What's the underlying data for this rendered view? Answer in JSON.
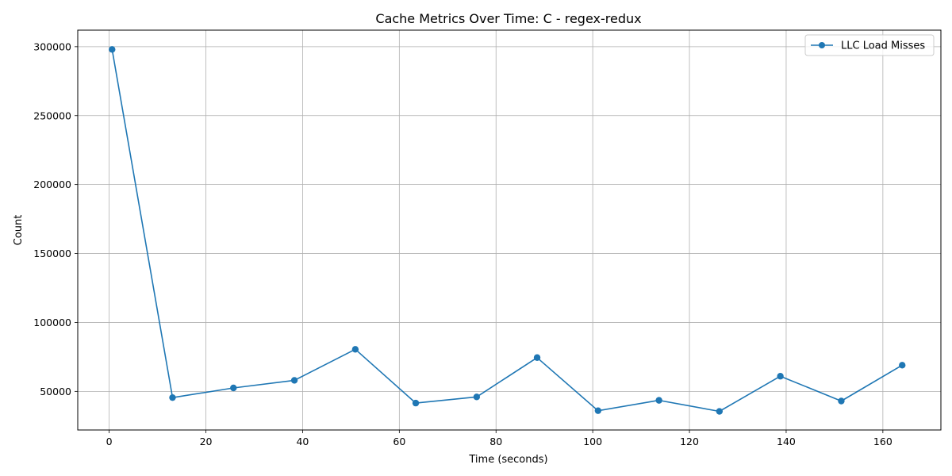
{
  "chart_data": {
    "type": "line",
    "title": "Cache Metrics Over Time: C - regex-redux",
    "xlabel": "Time (seconds)",
    "ylabel": "Count",
    "xlim": [
      -6.5,
      172
    ],
    "ylim": [
      22000,
      312000
    ],
    "xticks": [
      0,
      20,
      40,
      60,
      80,
      100,
      120,
      140,
      160
    ],
    "yticks": [
      50000,
      100000,
      150000,
      200000,
      250000,
      300000
    ],
    "grid": true,
    "legend_position": "top-right",
    "series": [
      {
        "name": "LLC Load Misses",
        "color": "#1f77b4",
        "marker": "circle",
        "x": [
          0.6,
          13.1,
          25.7,
          38.3,
          50.9,
          63.4,
          76.0,
          88.5,
          101.1,
          113.7,
          126.2,
          138.8,
          151.4,
          164.0
        ],
        "y": [
          298000,
          45500,
          52500,
          58000,
          80500,
          41500,
          46000,
          74500,
          36000,
          43500,
          35500,
          61000,
          43000,
          69000
        ]
      }
    ]
  }
}
